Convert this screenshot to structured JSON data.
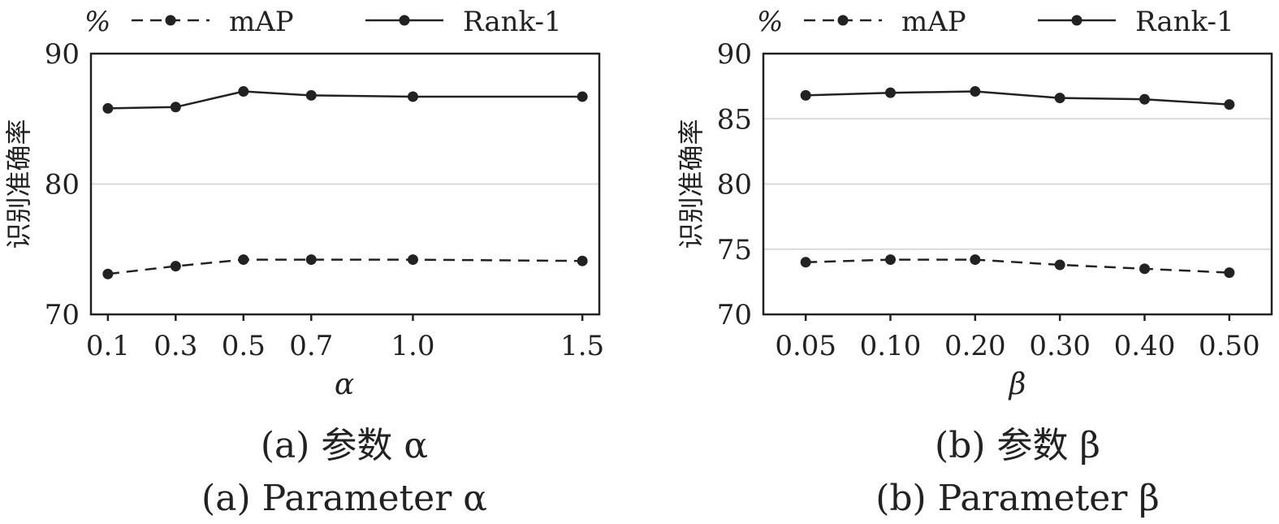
{
  "chart_data": [
    {
      "type": "line",
      "title": "",
      "xlabel": "α",
      "ylabel": "识别准确率",
      "y_unit": "%",
      "ylim": [
        70,
        90
      ],
      "yticks": [
        "70",
        "80",
        "90"
      ],
      "gridlines_y": [
        80
      ],
      "categories": [
        "0.1",
        "0.3",
        "0.5",
        "0.7",
        "1.0",
        "1.5"
      ],
      "x": [
        0.1,
        0.3,
        0.5,
        0.7,
        1.0,
        1.5
      ],
      "xlim": [
        0.05,
        1.55
      ],
      "grid": true,
      "legend_position": "top",
      "series": [
        {
          "name": "mAP",
          "style": "dashed",
          "values": [
            73.1,
            73.7,
            74.2,
            74.2,
            74.2,
            74.1
          ]
        },
        {
          "name": "Rank-1",
          "style": "solid",
          "values": [
            85.8,
            85.9,
            87.1,
            86.8,
            86.7,
            86.7
          ]
        }
      ],
      "caption_cn": "(a) 参数 α",
      "caption_en": "(a) Parameter α"
    },
    {
      "type": "line",
      "title": "",
      "xlabel": "β",
      "ylabel": "识别准确率",
      "y_unit": "%",
      "ylim": [
        70,
        90
      ],
      "yticks": [
        "70",
        "75",
        "80",
        "85",
        "90"
      ],
      "gridlines_y": [
        75,
        80,
        85
      ],
      "categories": [
        "0.05",
        "0.10",
        "0.20",
        "0.30",
        "0.40",
        "0.50"
      ],
      "grid": true,
      "legend_position": "top",
      "series": [
        {
          "name": "mAP",
          "style": "dashed",
          "values": [
            74.0,
            74.2,
            74.2,
            73.8,
            73.5,
            73.2
          ]
        },
        {
          "name": "Rank-1",
          "style": "solid",
          "values": [
            86.8,
            87.0,
            87.1,
            86.6,
            86.5,
            86.1
          ]
        }
      ],
      "caption_cn": "(b) 参数 β",
      "caption_en": "(b) Parameter β"
    }
  ]
}
